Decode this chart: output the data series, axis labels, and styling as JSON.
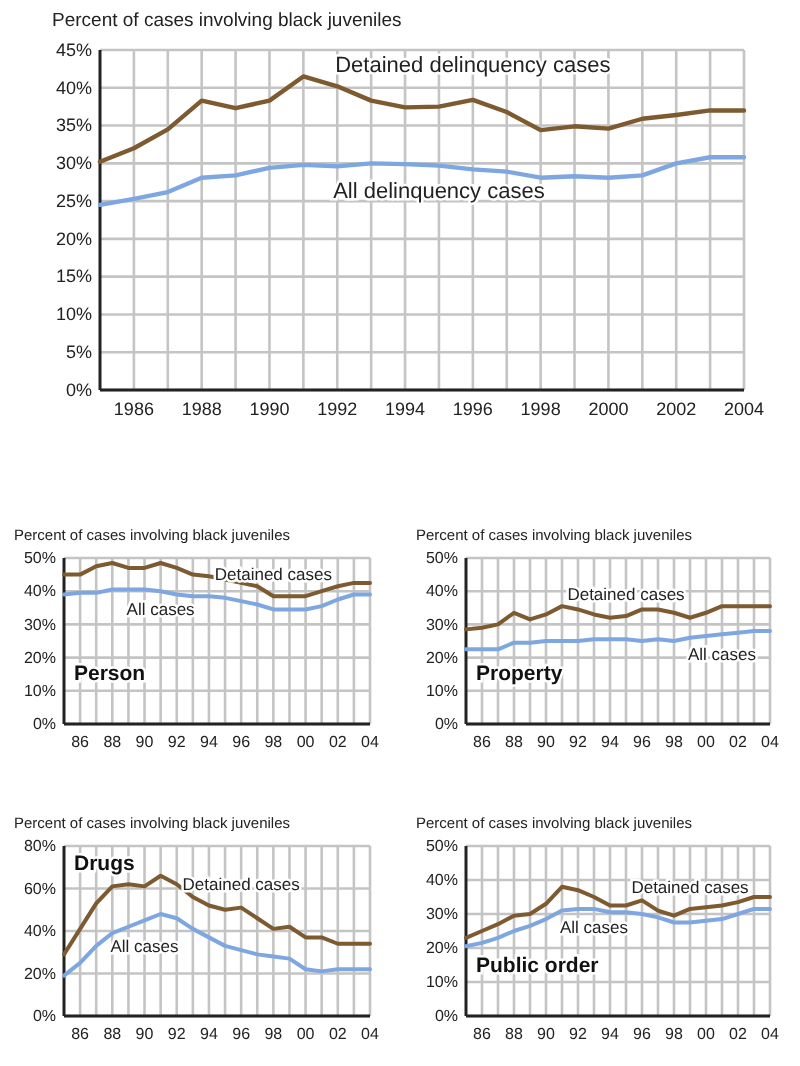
{
  "chart_data": [
    {
      "type": "line",
      "ylabel": "Percent of cases involving black juveniles",
      "x": [
        1985,
        1986,
        1987,
        1988,
        1989,
        1990,
        1991,
        1992,
        1993,
        1994,
        1995,
        1996,
        1997,
        1998,
        1999,
        2000,
        2001,
        2002,
        2003,
        2004
      ],
      "xlim": [
        1985,
        2004
      ],
      "xticks": [
        1986,
        {
          "value": 1987,
          "label": null
        },
        1988,
        {
          "value": 1989,
          "label": null
        },
        1990,
        {
          "value": 1991,
          "label": null
        },
        1992,
        {
          "value": 1993,
          "label": null
        },
        1994,
        {
          "value": 1995,
          "label": null
        },
        1996,
        {
          "value": 1997,
          "label": null
        },
        1998,
        {
          "value": 1999,
          "label": null
        },
        2000,
        {
          "value": 2001,
          "label": null
        },
        2002,
        {
          "value": 2003,
          "label": null
        },
        2004
      ],
      "ylim": [
        0,
        45
      ],
      "yticks": [
        {
          "value": 0,
          "label": "0%"
        },
        {
          "value": 5,
          "label": "5%"
        },
        {
          "value": 10,
          "label": "10%"
        },
        {
          "value": 15,
          "label": "15%"
        },
        {
          "value": 20,
          "label": "20%"
        },
        {
          "value": 25,
          "label": "25%"
        },
        {
          "value": 30,
          "label": "30%"
        },
        {
          "value": 35,
          "label": "35%"
        },
        {
          "value": 40,
          "label": "40%"
        },
        {
          "value": 45,
          "label": "45%"
        }
      ],
      "grid": true,
      "series": [
        {
          "name": "Detained delinquency cases",
          "color": "#7d5a2f",
          "values": [
            30.2,
            32,
            34.5,
            38.3,
            37.3,
            38.3,
            41.5,
            40.2,
            38.3,
            37.4,
            37.5,
            38.4,
            36.8,
            34.4,
            34.9,
            34.6,
            35.9,
            36.4,
            37,
            37
          ]
        },
        {
          "name": "All delinquency cases",
          "color": "#7ea6e0",
          "values": [
            24.5,
            25.3,
            26.2,
            28.1,
            28.4,
            29.4,
            29.8,
            29.6,
            30,
            29.9,
            29.7,
            29.2,
            28.9,
            28.1,
            28.3,
            28.1,
            28.4,
            30,
            30.8,
            30.8
          ]
        }
      ]
    },
    {
      "type": "line",
      "ylabel": "Percent of cases involving black juveniles",
      "annotations": [
        "Person"
      ],
      "x": [
        1985,
        1986,
        1987,
        1988,
        1989,
        1990,
        1991,
        1992,
        1993,
        1994,
        1995,
        1996,
        1997,
        1998,
        1999,
        2000,
        2001,
        2002,
        2003,
        2004
      ],
      "xlim": [
        1985,
        2004
      ],
      "xticks": [
        {
          "value": 1986,
          "label": "86"
        },
        {
          "value": 1987,
          "label": null
        },
        {
          "value": 1988,
          "label": "88"
        },
        {
          "value": 1989,
          "label": null
        },
        {
          "value": 1990,
          "label": "90"
        },
        {
          "value": 1991,
          "label": null
        },
        {
          "value": 1992,
          "label": "92"
        },
        {
          "value": 1993,
          "label": null
        },
        {
          "value": 1994,
          "label": "94"
        },
        {
          "value": 1995,
          "label": null
        },
        {
          "value": 1996,
          "label": "96"
        },
        {
          "value": 1997,
          "label": null
        },
        {
          "value": 1998,
          "label": "98"
        },
        {
          "value": 1999,
          "label": null
        },
        {
          "value": 2000,
          "label": "00"
        },
        {
          "value": 2001,
          "label": null
        },
        {
          "value": 2002,
          "label": "02"
        },
        {
          "value": 2003,
          "label": null
        },
        {
          "value": 2004,
          "label": "04"
        }
      ],
      "ylim": [
        0,
        50
      ],
      "yticks": [
        {
          "value": 0,
          "label": "0%"
        },
        {
          "value": 10,
          "label": "10%"
        },
        {
          "value": 20,
          "label": "20%"
        },
        {
          "value": 30,
          "label": "30%"
        },
        {
          "value": 40,
          "label": "40%"
        },
        {
          "value": 50,
          "label": "50%"
        }
      ],
      "grid": true,
      "series": [
        {
          "name": "Detained cases",
          "color": "#7d5a2f",
          "values": [
            45,
            45,
            47.5,
            48.5,
            47,
            47,
            48.5,
            47,
            45,
            44.5,
            43.5,
            42.5,
            41.5,
            38.5,
            38.5,
            38.5,
            40,
            41.5,
            42.5,
            42.5
          ]
        },
        {
          "name": "All cases",
          "color": "#7ea6e0",
          "values": [
            39,
            39.5,
            39.5,
            40.5,
            40.5,
            40.5,
            40,
            39,
            38.5,
            38.5,
            38,
            37,
            36,
            34.5,
            34.5,
            34.5,
            35.5,
            37.5,
            39,
            39
          ]
        }
      ]
    },
    {
      "type": "line",
      "ylabel": "Percent of cases involving black juveniles",
      "annotations": [
        "Property"
      ],
      "x": [
        1985,
        1986,
        1987,
        1988,
        1989,
        1990,
        1991,
        1992,
        1993,
        1994,
        1995,
        1996,
        1997,
        1998,
        1999,
        2000,
        2001,
        2002,
        2003,
        2004
      ],
      "xlim": [
        1985,
        2004
      ],
      "xticks": [
        {
          "value": 1986,
          "label": "86"
        },
        {
          "value": 1987,
          "label": null
        },
        {
          "value": 1988,
          "label": "88"
        },
        {
          "value": 1989,
          "label": null
        },
        {
          "value": 1990,
          "label": "90"
        },
        {
          "value": 1991,
          "label": null
        },
        {
          "value": 1992,
          "label": "92"
        },
        {
          "value": 1993,
          "label": null
        },
        {
          "value": 1994,
          "label": "94"
        },
        {
          "value": 1995,
          "label": null
        },
        {
          "value": 1996,
          "label": "96"
        },
        {
          "value": 1997,
          "label": null
        },
        {
          "value": 1998,
          "label": "98"
        },
        {
          "value": 1999,
          "label": null
        },
        {
          "value": 2000,
          "label": "00"
        },
        {
          "value": 2001,
          "label": null
        },
        {
          "value": 2002,
          "label": "02"
        },
        {
          "value": 2003,
          "label": null
        },
        {
          "value": 2004,
          "label": "04"
        }
      ],
      "ylim": [
        0,
        50
      ],
      "yticks": [
        {
          "value": 0,
          "label": "0%"
        },
        {
          "value": 10,
          "label": "10%"
        },
        {
          "value": 20,
          "label": "20%"
        },
        {
          "value": 30,
          "label": "30%"
        },
        {
          "value": 40,
          "label": "40%"
        },
        {
          "value": 50,
          "label": "50%"
        }
      ],
      "grid": true,
      "series": [
        {
          "name": "Detained cases",
          "color": "#7d5a2f",
          "values": [
            28.5,
            29,
            30,
            33.5,
            31.5,
            33,
            35.5,
            34.5,
            33,
            32,
            32.5,
            34.5,
            34.5,
            33.5,
            32,
            33.5,
            35.5,
            35.5,
            35.5,
            35.5
          ]
        },
        {
          "name": "All cases",
          "color": "#7ea6e0",
          "values": [
            22.5,
            22.5,
            22.5,
            24.5,
            24.5,
            25,
            25,
            25,
            25.5,
            25.5,
            25.5,
            25,
            25.5,
            25,
            26,
            26.5,
            27,
            27.5,
            28,
            28
          ]
        }
      ]
    },
    {
      "type": "line",
      "ylabel": "Percent of cases involving black juveniles",
      "annotations": [
        "Drugs"
      ],
      "x": [
        1985,
        1986,
        1987,
        1988,
        1989,
        1990,
        1991,
        1992,
        1993,
        1994,
        1995,
        1996,
        1997,
        1998,
        1999,
        2000,
        2001,
        2002,
        2003,
        2004
      ],
      "xlim": [
        1985,
        2004
      ],
      "xticks": [
        {
          "value": 1986,
          "label": "86"
        },
        {
          "value": 1987,
          "label": null
        },
        {
          "value": 1988,
          "label": "88"
        },
        {
          "value": 1989,
          "label": null
        },
        {
          "value": 1990,
          "label": "90"
        },
        {
          "value": 1991,
          "label": null
        },
        {
          "value": 1992,
          "label": "92"
        },
        {
          "value": 1993,
          "label": null
        },
        {
          "value": 1994,
          "label": "94"
        },
        {
          "value": 1995,
          "label": null
        },
        {
          "value": 1996,
          "label": "96"
        },
        {
          "value": 1997,
          "label": null
        },
        {
          "value": 1998,
          "label": "98"
        },
        {
          "value": 1999,
          "label": null
        },
        {
          "value": 2000,
          "label": "00"
        },
        {
          "value": 2001,
          "label": null
        },
        {
          "value": 2002,
          "label": "02"
        },
        {
          "value": 2003,
          "label": null
        },
        {
          "value": 2004,
          "label": "04"
        }
      ],
      "ylim": [
        0,
        80
      ],
      "yticks": [
        {
          "value": 0,
          "label": "0%"
        },
        {
          "value": 20,
          "label": "20%"
        },
        {
          "value": 40,
          "label": "40%"
        },
        {
          "value": 60,
          "label": "60%"
        },
        {
          "value": 80,
          "label": "80%"
        }
      ],
      "grid": true,
      "series": [
        {
          "name": "Detained cases",
          "color": "#7d5a2f",
          "values": [
            29,
            41,
            53,
            61,
            62,
            61,
            66,
            62,
            56,
            52,
            50,
            51,
            46,
            41,
            42,
            37,
            37,
            34,
            34,
            34
          ]
        },
        {
          "name": "All cases",
          "color": "#7ea6e0",
          "values": [
            19,
            25,
            33,
            39,
            42,
            45,
            48,
            46,
            41,
            37,
            33,
            31,
            29,
            28,
            27,
            22,
            21,
            22,
            22,
            22
          ]
        }
      ]
    },
    {
      "type": "line",
      "ylabel": "Percent of cases involving black juveniles",
      "annotations": [
        "Public order"
      ],
      "x": [
        1985,
        1986,
        1987,
        1988,
        1989,
        1990,
        1991,
        1992,
        1993,
        1994,
        1995,
        1996,
        1997,
        1998,
        1999,
        2000,
        2001,
        2002,
        2003,
        2004
      ],
      "xlim": [
        1985,
        2004
      ],
      "xticks": [
        {
          "value": 1986,
          "label": "86"
        },
        {
          "value": 1987,
          "label": null
        },
        {
          "value": 1988,
          "label": "88"
        },
        {
          "value": 1989,
          "label": null
        },
        {
          "value": 1990,
          "label": "90"
        },
        {
          "value": 1991,
          "label": null
        },
        {
          "value": 1992,
          "label": "92"
        },
        {
          "value": 1993,
          "label": null
        },
        {
          "value": 1994,
          "label": "94"
        },
        {
          "value": 1995,
          "label": null
        },
        {
          "value": 1996,
          "label": "96"
        },
        {
          "value": 1997,
          "label": null
        },
        {
          "value": 1998,
          "label": "98"
        },
        {
          "value": 1999,
          "label": null
        },
        {
          "value": 2000,
          "label": "00"
        },
        {
          "value": 2001,
          "label": null
        },
        {
          "value": 2002,
          "label": "02"
        },
        {
          "value": 2003,
          "label": null
        },
        {
          "value": 2004,
          "label": "04"
        }
      ],
      "ylim": [
        0,
        50
      ],
      "yticks": [
        {
          "value": 0,
          "label": "0%"
        },
        {
          "value": 10,
          "label": "10%"
        },
        {
          "value": 20,
          "label": "20%"
        },
        {
          "value": 30,
          "label": "30%"
        },
        {
          "value": 40,
          "label": "40%"
        },
        {
          "value": 50,
          "label": "50%"
        }
      ],
      "grid": true,
      "series": [
        {
          "name": "Detained cases",
          "color": "#7d5a2f",
          "values": [
            23,
            25,
            27,
            29.5,
            30,
            33,
            38,
            37,
            35,
            32.5,
            32.5,
            34,
            31,
            29.5,
            31.5,
            32,
            32.5,
            33.5,
            35,
            35
          ]
        },
        {
          "name": "All cases",
          "color": "#7ea6e0",
          "values": [
            20.5,
            21.5,
            23,
            25,
            26.5,
            28.5,
            31,
            31.5,
            31.5,
            30.5,
            30.5,
            30,
            29,
            27.5,
            27.5,
            28,
            28.5,
            30,
            31.5,
            31.5
          ]
        }
      ]
    }
  ]
}
